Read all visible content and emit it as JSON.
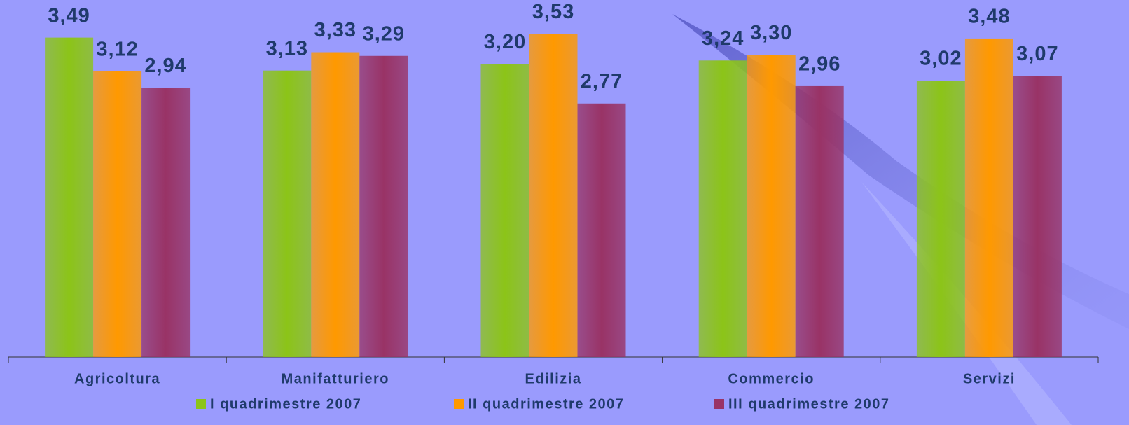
{
  "chart_data": {
    "type": "bar",
    "categories": [
      "Agricoltura",
      "Manifatturiero",
      "Edilizia",
      "Commercio",
      "Servizi"
    ],
    "series": [
      {
        "name": "I quadrimestre 2007",
        "color": "#8cc418",
        "values": [
          3.49,
          3.13,
          3.2,
          3.24,
          3.02
        ],
        "value_labels": [
          "3,49",
          "3,13",
          "3,20",
          "3,24",
          "3,02"
        ]
      },
      {
        "name": "II quadrimestre 2007",
        "color": "#ff9900",
        "values": [
          3.12,
          3.33,
          3.53,
          3.3,
          3.48
        ],
        "value_labels": [
          "3,12",
          "3,33",
          "3,53",
          "3,30",
          "3,48"
        ]
      },
      {
        "name": "III quadrimestre 2007",
        "color": "#993366",
        "values": [
          2.94,
          3.29,
          2.77,
          2.96,
          3.07
        ],
        "value_labels": [
          "2,94",
          "3,29",
          "2,77",
          "2,96",
          "3,07"
        ]
      }
    ],
    "ylim": [
      0,
      3.9
    ],
    "legend": "bottom"
  }
}
